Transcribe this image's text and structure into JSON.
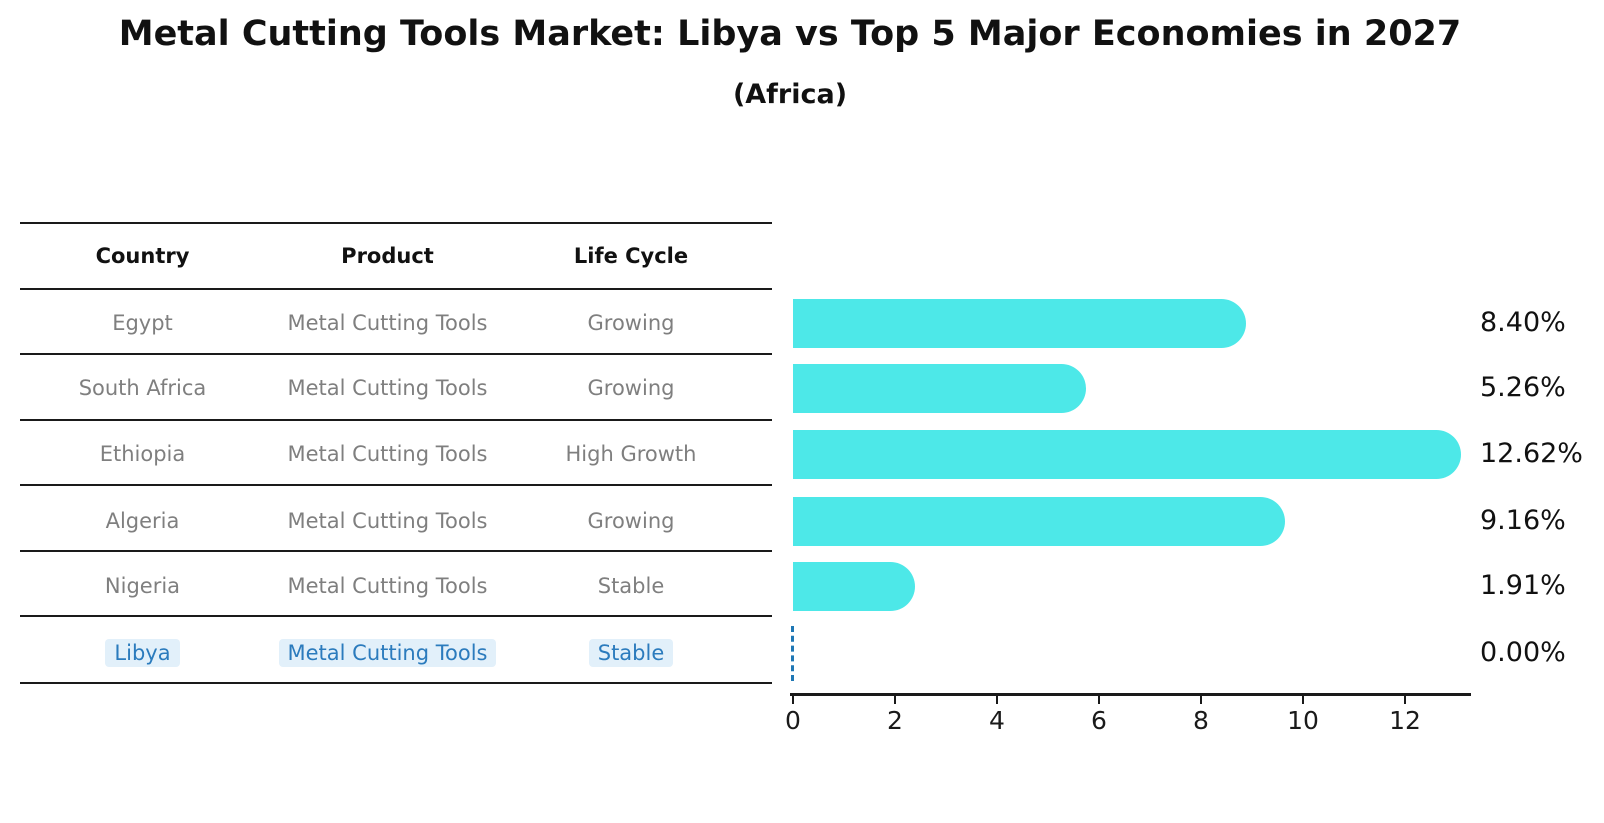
{
  "chart_data": {
    "type": "bar",
    "orientation": "horizontal",
    "title": "Metal Cutting Tools Market: Libya vs Top 5 Major Economies in 2027",
    "subtitle": "(Africa)",
    "categories": [
      "Egypt",
      "South Africa",
      "Ethiopia",
      "Algeria",
      "Nigeria",
      "Libya"
    ],
    "values": [
      8.4,
      5.26,
      12.62,
      9.16,
      1.91,
      0.0
    ],
    "value_labels": [
      "8.40%",
      "5.26%",
      "12.62%",
      "9.16%",
      "1.91%",
      "0.00%"
    ],
    "x_ticks": [
      "0",
      "2",
      "4",
      "6",
      "8",
      "10",
      "12"
    ],
    "x_tick_values": [
      0,
      2,
      4,
      6,
      8,
      10,
      12
    ],
    "xlim": [
      0,
      13.3
    ],
    "grid": false,
    "legend_position": "none",
    "bar_color": "#4DE8E8",
    "zero_marker": {
      "category": "Libya",
      "style": "dashed-vertical-line",
      "color": "#1f77b4"
    }
  },
  "table": {
    "headers": [
      "Country",
      "Product",
      "Life Cycle"
    ],
    "rows": [
      {
        "country": "Egypt",
        "product": "Metal Cutting Tools",
        "life_cycle": "Growing",
        "highlighted": false
      },
      {
        "country": "South Africa",
        "product": "Metal Cutting Tools",
        "life_cycle": "Growing",
        "highlighted": false
      },
      {
        "country": "Ethiopia",
        "product": "Metal Cutting Tools",
        "life_cycle": "High Growth",
        "highlighted": false
      },
      {
        "country": "Algeria",
        "product": "Metal Cutting Tools",
        "life_cycle": "Growing",
        "highlighted": false
      },
      {
        "country": "Nigeria",
        "product": "Metal Cutting Tools",
        "life_cycle": "Stable",
        "highlighted": false
      },
      {
        "country": "Libya",
        "product": "Metal Cutting Tools",
        "life_cycle": "Stable",
        "highlighted": true
      }
    ]
  },
  "colors": {
    "bar": "#4DE8E8",
    "highlight_text": "#2b7bbd",
    "highlight_bg": "#e2f0fa",
    "table_text": "#7f7f7f",
    "heading_text": "#111111",
    "axis": "#1a1a1a"
  }
}
